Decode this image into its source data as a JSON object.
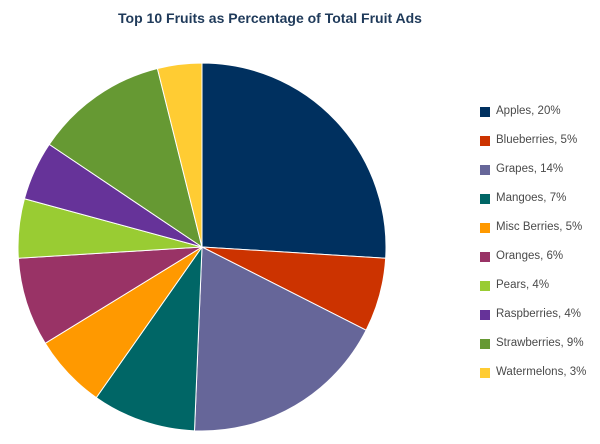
{
  "chart_data": {
    "type": "pie",
    "title": "Top 10 Fruits as Percentage of Total Fruit Ads",
    "legend_position": "right",
    "start": "12 o'clock",
    "direction": "clockwise",
    "slices": [
      {
        "label": "Apples",
        "legend": "Apples, 20%",
        "value": 20,
        "color": "#00305f"
      },
      {
        "label": "Blueberries",
        "legend": "Blueberries, 5%",
        "value": 5,
        "color": "#cc3300"
      },
      {
        "label": "Grapes",
        "legend": "Grapes, 14%",
        "value": 14,
        "color": "#666699"
      },
      {
        "label": "Mangoes",
        "legend": "Mangoes, 7%",
        "value": 7,
        "color": "#006666"
      },
      {
        "label": "Misc Berries",
        "legend": "Misc Berries, 5%",
        "value": 5,
        "color": "#ff9900"
      },
      {
        "label": "Oranges",
        "legend": "Oranges, 6%",
        "value": 6,
        "color": "#993366"
      },
      {
        "label": "Pears",
        "legend": "Pears, 4%",
        "value": 4,
        "color": "#99cc33"
      },
      {
        "label": "Raspberries",
        "legend": "Raspberries, 4%",
        "value": 4,
        "color": "#663399"
      },
      {
        "label": "Strawberries",
        "legend": "Strawberries, 9%",
        "value": 9,
        "color": "#669933"
      },
      {
        "label": "Watermelons",
        "legend": "Watermelons, 3%",
        "value": 3,
        "color": "#ffcc33"
      }
    ]
  }
}
